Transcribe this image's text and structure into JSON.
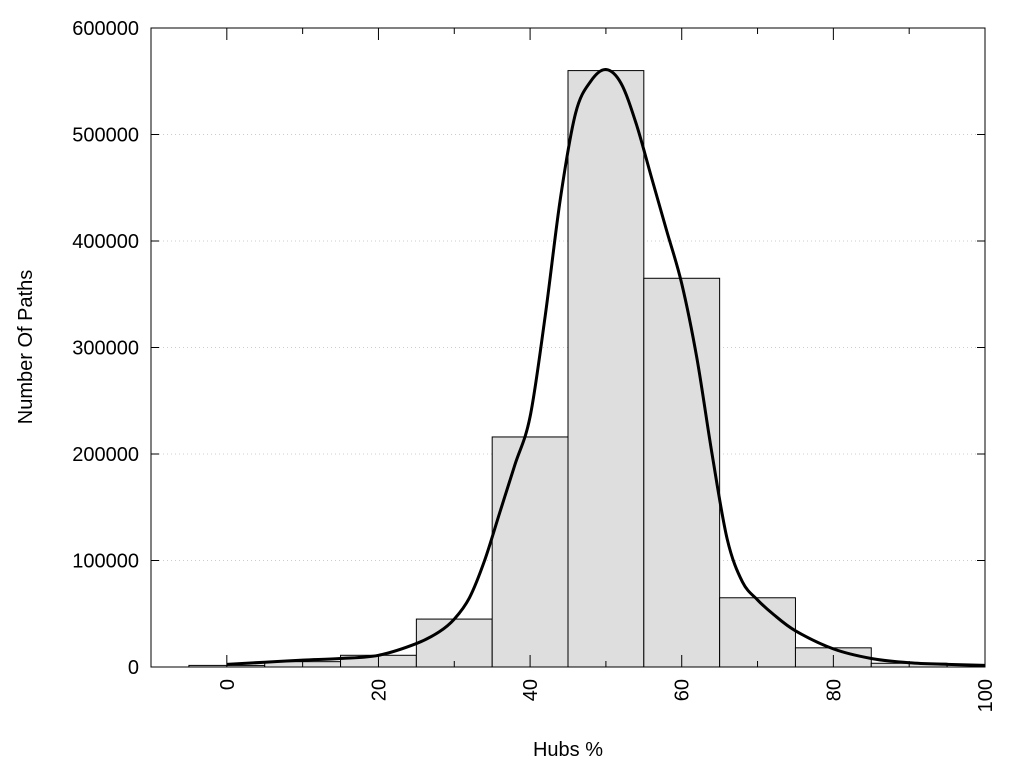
{
  "chart_data": {
    "type": "bar",
    "title": "",
    "xlabel": "Hubs %",
    "ylabel": "Number Of Paths",
    "xlim": [
      -10,
      100
    ],
    "ylim": [
      0,
      600000
    ],
    "grid": true,
    "legend": "none",
    "bar_width": 10,
    "bar_color": "#dedede",
    "x_ticks": [
      0,
      20,
      40,
      60,
      80,
      100
    ],
    "x_minor_ticks": [
      10,
      30,
      50,
      70,
      90
    ],
    "y_ticks": [
      0,
      100000,
      200000,
      300000,
      400000,
      500000,
      600000
    ],
    "categories": [
      0,
      10,
      20,
      30,
      40,
      50,
      60,
      70,
      80,
      90
    ],
    "values": [
      1500,
      5000,
      11000,
      45000,
      216000,
      560000,
      365000,
      65000,
      18000,
      3500
    ],
    "curve": {
      "x": [
        0,
        5,
        10,
        15,
        20,
        25,
        28,
        30,
        32,
        34,
        36,
        38,
        40,
        42,
        44,
        46,
        48,
        50,
        52,
        54,
        56,
        58,
        60,
        62,
        64,
        66,
        68,
        70,
        72,
        75,
        80,
        85,
        90,
        95,
        100
      ],
      "y": [
        2500,
        4500,
        6500,
        8000,
        11000,
        22000,
        33000,
        45000,
        65000,
        100000,
        145000,
        190000,
        235000,
        330000,
        440000,
        520000,
        550000,
        561000,
        548000,
        510000,
        460000,
        410000,
        360000,
        290000,
        200000,
        120000,
        80000,
        63000,
        50000,
        34000,
        17000,
        8000,
        4000,
        2500,
        1500
      ]
    }
  }
}
